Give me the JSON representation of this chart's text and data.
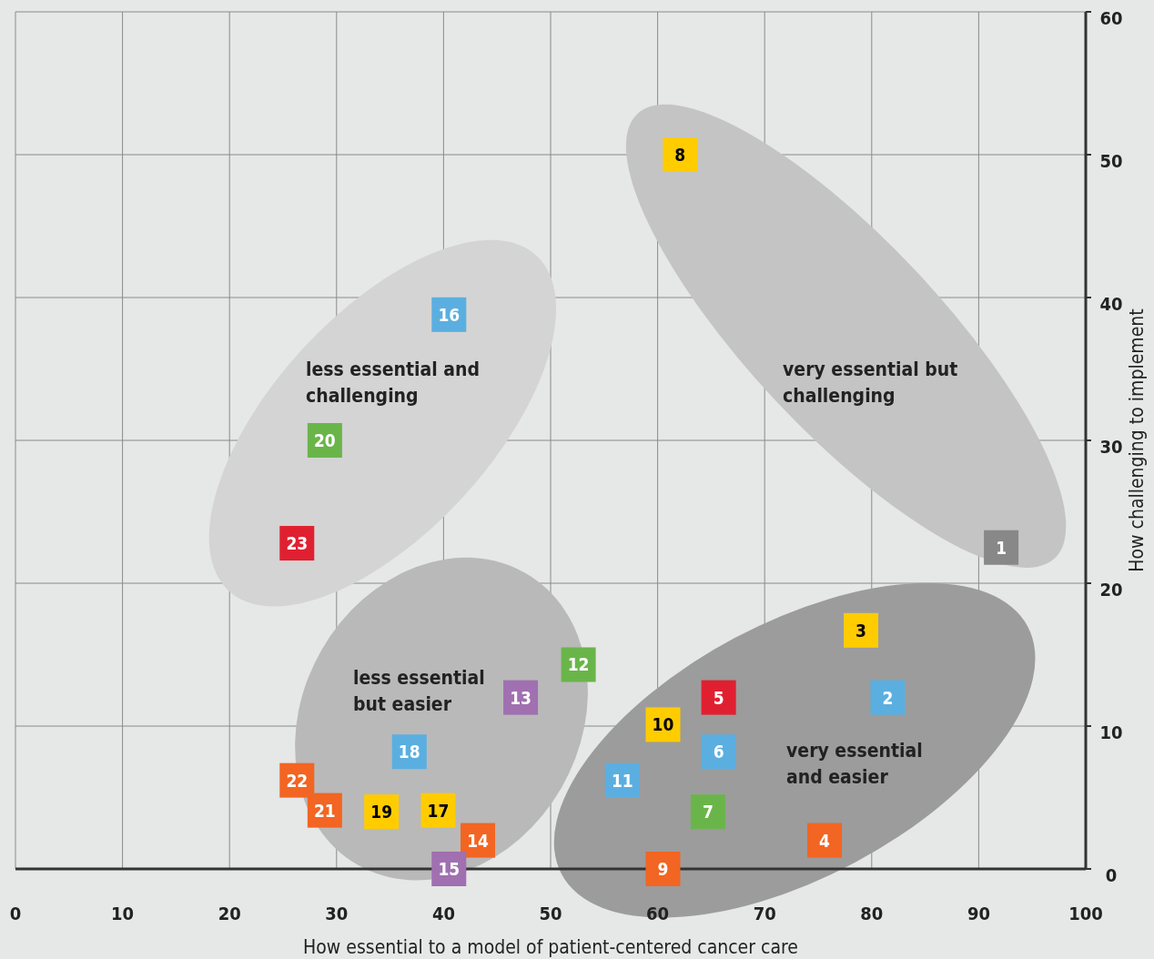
{
  "chart_data": {
    "type": "scatter",
    "xlabel": "How essential to a model of patient-centered cancer care",
    "ylabel": "How challenging to implement",
    "xlim": [
      0,
      100
    ],
    "ylim": [
      0,
      60
    ],
    "xticks": [
      0,
      10,
      20,
      30,
      40,
      50,
      60,
      70,
      80,
      90,
      100
    ],
    "yticks": [
      0,
      10,
      20,
      30,
      40,
      50,
      60
    ],
    "grid": true,
    "marker": "square",
    "series": [
      {
        "x": [
          92.1,
          81.5,
          79.0,
          75.6,
          65.7,
          65.7,
          64.7,
          62.1,
          60.5,
          60.5,
          56.7,
          52.6,
          47.2,
          43.2,
          40.5,
          40.5,
          39.5,
          36.8,
          34.2,
          28.9,
          28.9,
          26.3,
          26.3
        ],
        "values": [
          22.5,
          12.0,
          16.7,
          2.0,
          12.0,
          8.2,
          4.0,
          50.0,
          0,
          10.1,
          6.2,
          14.3,
          12.0,
          2.0,
          0,
          38.8,
          4.1,
          8.2,
          4.0,
          30.0,
          4.1,
          6.2,
          22.8
        ],
        "colors": [
          "#888888",
          "#5aafe0",
          "#ffcc00",
          "#f26522",
          "#e02030",
          "#5aafe0",
          "#6ab54a",
          "#ffcc00",
          "#f26522",
          "#ffcc00",
          "#5aafe0",
          "#6ab54a",
          "#a070b0",
          "#f26522",
          "#a070b0",
          "#5aafe0",
          "#ffcc00",
          "#5aafe0",
          "#ffcc00",
          "#6ab54a",
          "#f26522",
          "#f26522",
          "#e02030"
        ]
      }
    ],
    "annotations": [
      "very essential but\nchallenging",
      "less essential and\nchallenging",
      "less essential\nbut easier",
      "very essential\nand easier",
      {
        "text": "1",
        "x": 92.1,
        "y": 22.5
      },
      {
        "text": "2",
        "x": 81.5,
        "y": 12.0
      },
      {
        "text": "3",
        "x": 79.0,
        "y": 16.7
      },
      {
        "text": "4",
        "x": 75.6,
        "y": 2.0
      },
      {
        "text": "5",
        "x": 65.7,
        "y": 12.0
      },
      {
        "text": "6",
        "x": 65.7,
        "y": 8.2
      },
      {
        "text": "7",
        "x": 64.7,
        "y": 4.0
      },
      {
        "text": "8",
        "x": 62.1,
        "y": 50.0
      },
      {
        "text": "9",
        "x": 60.5,
        "y": 0
      },
      {
        "text": "10",
        "x": 60.5,
        "y": 10.1
      },
      {
        "text": "11",
        "x": 56.7,
        "y": 6.2
      },
      {
        "text": "12",
        "x": 52.6,
        "y": 14.3
      },
      {
        "text": "13",
        "x": 47.2,
        "y": 12.0
      },
      {
        "text": "14",
        "x": 43.2,
        "y": 2.0
      },
      {
        "text": "15",
        "x": 40.5,
        "y": 0
      },
      {
        "text": "16",
        "x": 40.5,
        "y": 38.8
      },
      {
        "text": "17",
        "x": 39.5,
        "y": 4.1
      },
      {
        "text": "18",
        "x": 36.8,
        "y": 8.2
      },
      {
        "text": "19",
        "x": 34.2,
        "y": 4.0
      },
      {
        "text": "20",
        "x": 28.9,
        "y": 30.0
      },
      {
        "text": "21",
        "x": 28.9,
        "y": 4.1
      },
      {
        "text": "22",
        "x": 26.3,
        "y": 6.2
      },
      {
        "text": "23",
        "x": 26.3,
        "y": 22.8
      }
    ]
  }
}
